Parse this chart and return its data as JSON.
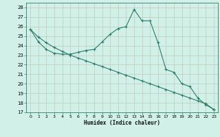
{
  "xlabel": "Humidex (Indice chaleur)",
  "background_color": "#d0f0e8",
  "grid_color": "#c0c8b8",
  "line_color": "#2a7a6a",
  "xlim": [
    -0.5,
    23.5
  ],
  "ylim": [
    17,
    28.5
  ],
  "yticks": [
    17,
    18,
    19,
    20,
    21,
    22,
    23,
    24,
    25,
    26,
    27,
    28
  ],
  "xticks": [
    0,
    1,
    2,
    3,
    4,
    5,
    6,
    7,
    8,
    9,
    10,
    11,
    12,
    13,
    14,
    15,
    16,
    17,
    18,
    19,
    20,
    21,
    22,
    23
  ],
  "series1_x": [
    0,
    1,
    2,
    3,
    4,
    5,
    6,
    7,
    8,
    9,
    10,
    11,
    12,
    13,
    14,
    15,
    16,
    17,
    18,
    19,
    20,
    21,
    22,
    23
  ],
  "series1_y": [
    25.7,
    24.4,
    23.6,
    23.2,
    23.1,
    23.1,
    23.3,
    23.5,
    23.6,
    24.4,
    25.2,
    25.8,
    26.0,
    27.8,
    26.6,
    26.6,
    24.3,
    21.5,
    21.2,
    20.0,
    19.7,
    18.5,
    17.8,
    17.3
  ],
  "series2_x": [
    0,
    1,
    2,
    3,
    4,
    5,
    6,
    7,
    8,
    9,
    10,
    11,
    12,
    13,
    14,
    15,
    16,
    17,
    18,
    19,
    20,
    21,
    22,
    23
  ],
  "series2_y": [
    25.7,
    24.9,
    24.3,
    23.8,
    23.4,
    23.0,
    22.7,
    22.4,
    22.1,
    21.8,
    21.5,
    21.2,
    20.9,
    20.6,
    20.3,
    20.0,
    19.7,
    19.4,
    19.1,
    18.8,
    18.5,
    18.2,
    17.9,
    17.3
  ]
}
